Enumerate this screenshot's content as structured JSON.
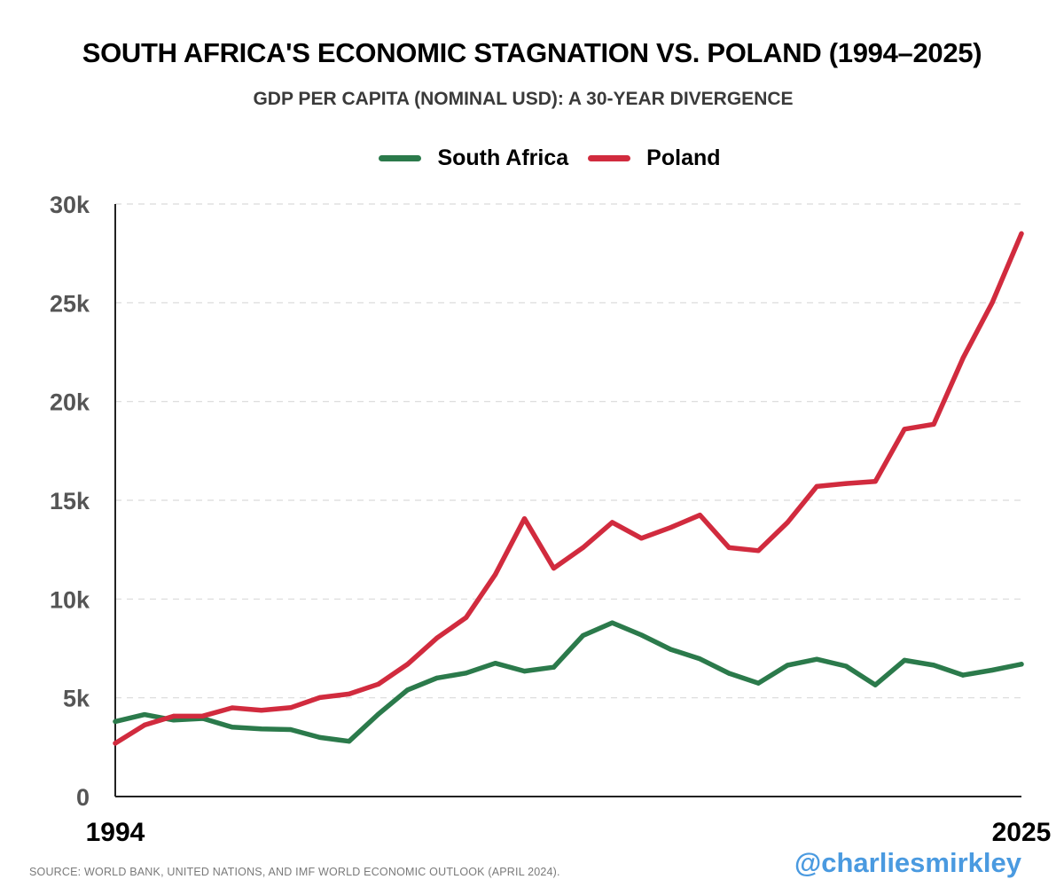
{
  "title": "SOUTH AFRICA'S ECONOMIC STAGNATION VS. POLAND (1994–2025)",
  "subtitle": "GDP PER CAPITA (NOMINAL USD): A 30-YEAR DIVERGENCE",
  "source": "SOURCE: WORLD BANK, UNITED NATIONS, AND IMF WORLD ECONOMIC OUTLOOK (APRIL 2024).",
  "handle": "@charliesmirkley",
  "colors": {
    "south_africa": "#2b7a4b",
    "poland": "#d12b3e",
    "grid": "#d9d9d9",
    "axis": "#222222",
    "tick_text": "#555555"
  },
  "chart_data": {
    "type": "line",
    "title": "SOUTH AFRICA'S ECONOMIC STAGNATION VS. POLAND (1994–2025)",
    "subtitle": "GDP PER CAPITA (NOMINAL USD): A 30-YEAR DIVERGENCE",
    "xlabel": "",
    "ylabel": "",
    "x": [
      1994,
      1995,
      1996,
      1997,
      1998,
      1999,
      2000,
      2001,
      2002,
      2003,
      2004,
      2005,
      2006,
      2007,
      2008,
      2009,
      2010,
      2011,
      2012,
      2013,
      2014,
      2015,
      2016,
      2017,
      2018,
      2019,
      2020,
      2021,
      2022,
      2023,
      2024,
      2025
    ],
    "xlim": [
      1994,
      2025
    ],
    "ylim": [
      0,
      30000
    ],
    "yticks": [
      0,
      5000,
      10000,
      15000,
      20000,
      25000,
      30000
    ],
    "ytick_labels": [
      "0",
      "5k",
      "10k",
      "15k",
      "20k",
      "25k",
      "30k"
    ],
    "xtick_labels": [
      {
        "value": 1994,
        "label": "1994"
      },
      {
        "value": 2025,
        "label": "2025"
      }
    ],
    "grid": true,
    "legend_position": "top-center",
    "series": [
      {
        "name": "South Africa",
        "color": "#2b7a4b",
        "values": [
          3800,
          4150,
          3870,
          3950,
          3510,
          3420,
          3390,
          2990,
          2800,
          4170,
          5400,
          6000,
          6250,
          6750,
          6350,
          6550,
          8150,
          8800,
          8180,
          7450,
          6970,
          6240,
          5740,
          6650,
          6950,
          6600,
          5650,
          6900,
          6650,
          6150,
          6400,
          6700
        ]
      },
      {
        "name": "Poland",
        "color": "#d12b3e",
        "values": [
          2700,
          3620,
          4070,
          4080,
          4490,
          4370,
          4500,
          5010,
          5190,
          5690,
          6700,
          8020,
          9060,
          11240,
          14070,
          11560,
          12600,
          13880,
          13080,
          13620,
          14250,
          12600,
          12450,
          13880,
          15700,
          15850,
          15950,
          18600,
          18850,
          22200,
          25000,
          28500
        ]
      }
    ]
  }
}
